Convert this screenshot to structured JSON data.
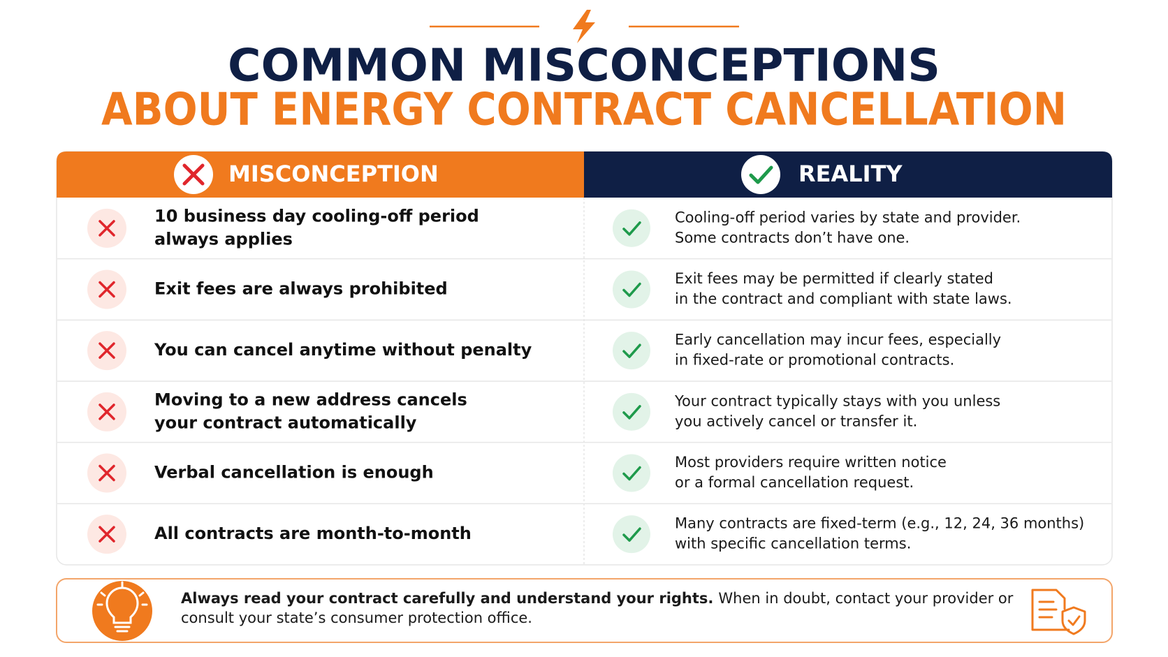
{
  "header": {
    "title_line1": "COMMON MISCONCEPTIONS",
    "title_line2": "ABOUT ENERGY CONTRACT CANCELLATION"
  },
  "table": {
    "headers": [
      "MISCONCEPTION",
      "REALITY"
    ],
    "rows": [
      {
        "misconception": [
          "10 business day cooling-off period",
          "always applies"
        ],
        "reality": [
          "Cooling-off period varies by state and provider.",
          "Some contracts don’t have one."
        ]
      },
      {
        "misconception": [
          "Exit fees are always prohibited"
        ],
        "reality": [
          "Exit fees may be permitted if clearly stated",
          "in the contract and compliant with state laws."
        ]
      },
      {
        "misconception": [
          "You can cancel anytime without penalty"
        ],
        "reality": [
          "Early cancellation may incur fees, especially",
          "in fixed-rate or promotional contracts."
        ]
      },
      {
        "misconception": [
          "Moving to a new address cancels",
          "your contract automatically"
        ],
        "reality": [
          "Your contract typically stays with you unless",
          "you actively cancel or transfer it."
        ]
      },
      {
        "misconception": [
          "Verbal cancellation is enough"
        ],
        "reality": [
          "Most providers require written notice",
          "or a formal cancellation request."
        ]
      },
      {
        "misconception": [
          "All contracts are month-to-month"
        ],
        "reality": [
          "Many contracts are fixed-term (e.g., 12, 24, 36 months)",
          "with specific cancellation terms."
        ]
      }
    ]
  },
  "footer": {
    "bold": "Always read your contract carefully and understand your rights.",
    "text": [
      "When in doubt, contact your provider or",
      "consult your state’s consumer protection office."
    ]
  }
}
